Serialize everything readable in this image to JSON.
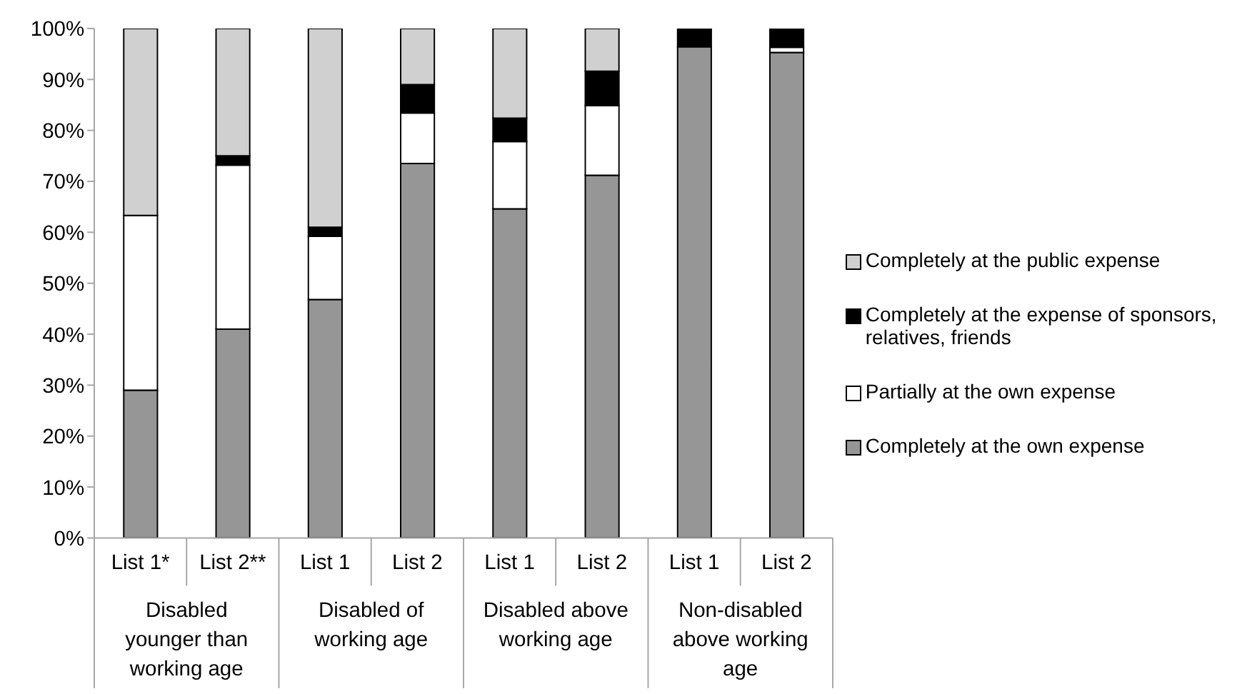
{
  "chart_data": {
    "type": "bar",
    "stacked": true,
    "categories": [
      "List 1*",
      "List 2**",
      "List 1",
      "List 2",
      "List 1",
      "List 2",
      "List 1",
      "List 2"
    ],
    "series": [
      {
        "name": "Completely at the own expense",
        "color": "#969696",
        "values": [
          29,
          41,
          46.8,
          73.5,
          64.6,
          71.2,
          96.4,
          95.3
        ]
      },
      {
        "name": "Partially at the own expense",
        "color": "#ffffff",
        "values": [
          34.3,
          32.2,
          12.4,
          9.9,
          13.2,
          13.7,
          0,
          1
        ]
      },
      {
        "name": "Completely at the expense of sponsors, relatives, friends",
        "color": "#000000",
        "values": [
          0,
          1.8,
          1.8,
          5.6,
          4.6,
          6.7,
          3.6,
          3.7
        ]
      },
      {
        "name": "Completely at the public expense",
        "color": "#d0d0d0",
        "values": [
          36.7,
          25,
          39,
          11,
          17.6,
          8.4,
          0,
          0
        ]
      }
    ],
    "ylim": [
      0,
      100
    ],
    "yticks": [
      {
        "value": 0,
        "label": "0%"
      },
      {
        "value": 10,
        "label": "10%"
      },
      {
        "value": 20,
        "label": "20%"
      },
      {
        "value": 30,
        "label": "30%"
      },
      {
        "value": 40,
        "label": "40%"
      },
      {
        "value": 50,
        "label": "50%"
      },
      {
        "value": 60,
        "label": "60%"
      },
      {
        "value": 70,
        "label": "70%"
      },
      {
        "value": 80,
        "label": "80%"
      },
      {
        "value": 90,
        "label": "90%"
      },
      {
        "value": 100,
        "label": "100%"
      }
    ],
    "annotations": [
      "Disabled younger than working age",
      "Disabled of working age",
      "Disabled above working age",
      "Non-disabled above working age"
    ],
    "grid": false,
    "legend": "right"
  }
}
